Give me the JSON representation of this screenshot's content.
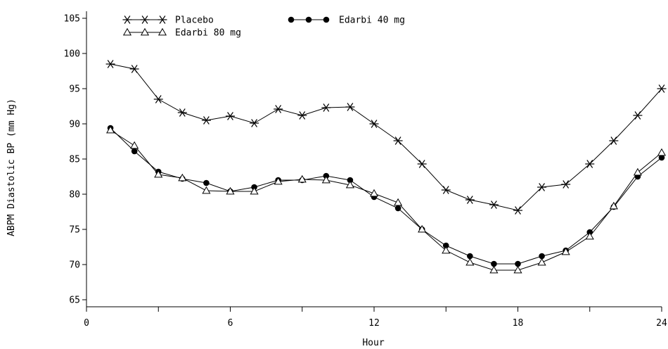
{
  "chart_data": {
    "type": "line",
    "xlabel": "Hour",
    "ylabel": "ABPM Diastolic BP (mm Hg)",
    "xlim": [
      0,
      24
    ],
    "ylim": [
      64,
      106
    ],
    "x_ticks": [
      0,
      6,
      12,
      18,
      24
    ],
    "x_minor_ticks": [
      3,
      9,
      15,
      21
    ],
    "y_ticks": [
      65,
      70,
      75,
      80,
      85,
      90,
      95,
      100,
      105
    ],
    "grid": false,
    "legend_position": "top-left",
    "x": [
      1,
      2,
      3,
      4,
      5,
      6,
      7,
      8,
      9,
      10,
      11,
      12,
      13,
      14,
      15,
      16,
      17,
      18,
      19,
      20,
      21,
      22,
      23,
      24
    ],
    "series": [
      {
        "name": "Placebo",
        "marker": "asterisk",
        "values": [
          98.5,
          97.8,
          93.5,
          91.6,
          90.5,
          91.1,
          90.1,
          92.1,
          91.2,
          92.3,
          92.4,
          90.0,
          87.6,
          84.3,
          80.6,
          79.2,
          78.5,
          77.7,
          81.0,
          81.4,
          84.3,
          87.6,
          91.2,
          95.0
        ]
      },
      {
        "name": "Edarbi 40 mg",
        "marker": "filled-circle",
        "values": [
          89.4,
          86.1,
          83.2,
          82.2,
          81.6,
          80.4,
          81.0,
          82.0,
          82.0,
          82.6,
          82.0,
          79.6,
          78.0,
          75.0,
          72.7,
          71.2,
          70.1,
          70.1,
          71.2,
          72.0,
          74.6,
          78.2,
          82.5,
          85.2
        ]
      },
      {
        "name": "Edarbi 80 mg",
        "marker": "open-triangle",
        "values": [
          89.1,
          86.9,
          82.8,
          82.3,
          80.5,
          80.4,
          80.4,
          81.8,
          82.1,
          82.0,
          81.3,
          80.1,
          78.8,
          75.0,
          72.0,
          70.3,
          69.2,
          69.2,
          70.3,
          71.8,
          74.0,
          78.3,
          83.1,
          85.9
        ]
      }
    ]
  }
}
